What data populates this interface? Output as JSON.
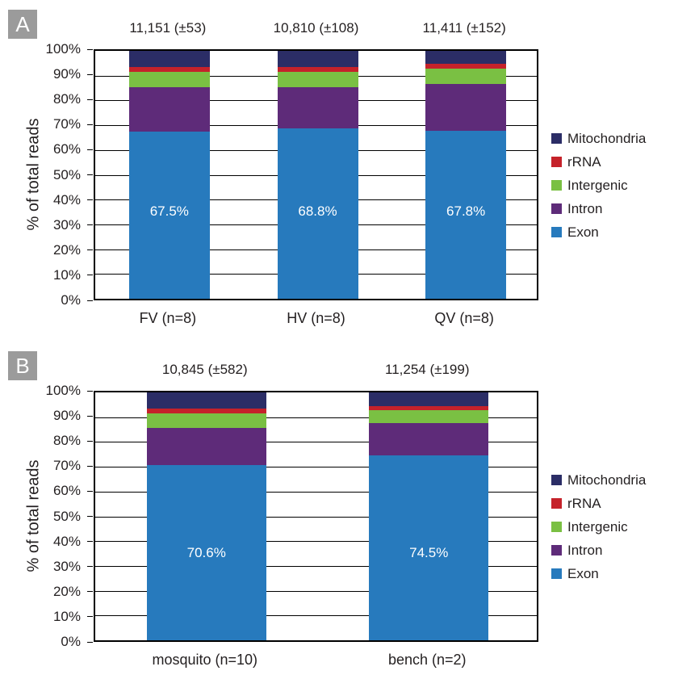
{
  "colors": {
    "exon": "#277abd",
    "intron": "#5e2b79",
    "intergenic": "#7ac043",
    "rrna": "#c5222a",
    "mitochondria": "#2b2d66",
    "panel_label_bg": "#9b9b9b",
    "text": "#231f20",
    "gridline": "#000000"
  },
  "panels": [
    {
      "letter": "A",
      "ylabel": "% of total reads"
    },
    {
      "letter": "B",
      "ylabel": "% of total reads"
    }
  ],
  "legend": {
    "items": [
      {
        "label": "Mitochondria",
        "key": "mitochondria"
      },
      {
        "label": "rRNA",
        "key": "rrna"
      },
      {
        "label": "Intergenic",
        "key": "intergenic"
      },
      {
        "label": "Intron",
        "key": "intron"
      },
      {
        "label": "Exon",
        "key": "exon"
      }
    ]
  },
  "chart_data": [
    {
      "type": "bar",
      "stacked": true,
      "panel": "A",
      "ylabel": "% of total reads",
      "ylim": [
        0,
        100
      ],
      "ytick_labels": [
        "100%",
        "90%",
        "80%",
        "70%",
        "60%",
        "50%",
        "40%",
        "30%",
        "20%",
        "10%",
        "0%"
      ],
      "grid": true,
      "legend_position": "right",
      "categories": [
        "FV (n=8)",
        "HV (n=8)",
        "QV (n=8)"
      ],
      "bar_annotations": [
        "11,151 (±53)",
        "10,810 (±108)",
        "11,411 (±152)"
      ],
      "exon_labels": [
        "67.5%",
        "68.8%",
        "67.8%"
      ],
      "series": [
        {
          "name": "Exon",
          "key": "exon",
          "values": [
            67.5,
            68.8,
            67.8
          ]
        },
        {
          "name": "Intron",
          "key": "intron",
          "values": [
            17.7,
            16.4,
            18.7
          ]
        },
        {
          "name": "Intergenic",
          "key": "intergenic",
          "values": [
            6.4,
            6.5,
            6.4
          ]
        },
        {
          "name": "rRNA",
          "key": "rrna",
          "values": [
            2.0,
            1.9,
            2.0
          ]
        },
        {
          "name": "Mitochondria",
          "key": "mitochondria",
          "values": [
            6.4,
            6.4,
            5.1
          ]
        }
      ]
    },
    {
      "type": "bar",
      "stacked": true,
      "panel": "B",
      "ylabel": "% of total reads",
      "ylim": [
        0,
        100
      ],
      "ytick_labels": [
        "100%",
        "90%",
        "80%",
        "70%",
        "60%",
        "50%",
        "40%",
        "30%",
        "20%",
        "10%",
        "0%"
      ],
      "grid": true,
      "legend_position": "right",
      "categories": [
        "mosquito (n=10)",
        "bench (n=2)"
      ],
      "bar_annotations": [
        "10,845 (±582)",
        "11,254 (±199)"
      ],
      "exon_labels": [
        "70.6%",
        "74.5%"
      ],
      "series": [
        {
          "name": "Exon",
          "key": "exon",
          "values": [
            70.6,
            74.5
          ]
        },
        {
          "name": "Intron",
          "key": "intron",
          "values": [
            15.0,
            13.1
          ]
        },
        {
          "name": "Intergenic",
          "key": "intergenic",
          "values": [
            6.1,
            5.1
          ]
        },
        {
          "name": "rRNA",
          "key": "rrna",
          "values": [
            1.9,
            1.9
          ]
        },
        {
          "name": "Mitochondria",
          "key": "mitochondria",
          "values": [
            6.4,
            5.4
          ]
        }
      ]
    }
  ]
}
